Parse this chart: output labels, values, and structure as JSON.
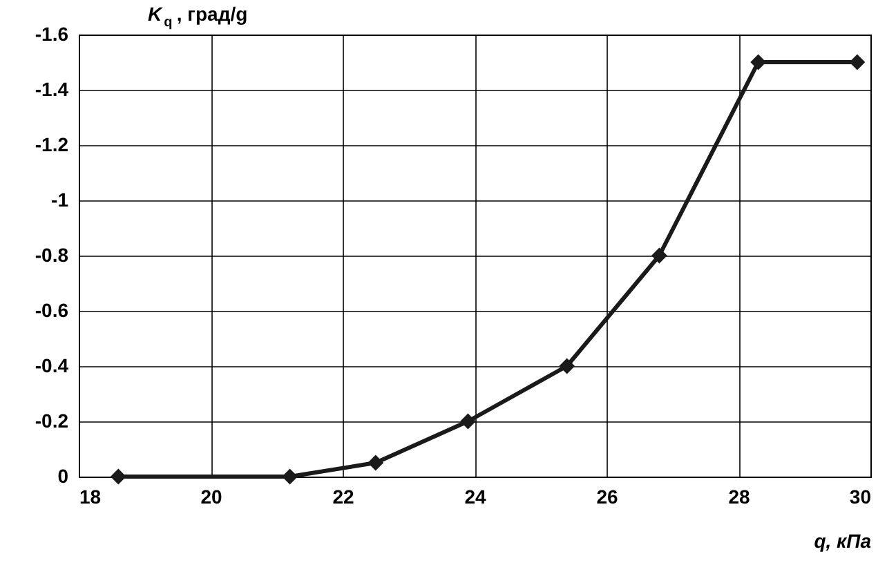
{
  "chart_data": {
    "type": "line",
    "xlabel": "q, кПа",
    "ylabel": "K$_{q}$, град/g",
    "x": [
      18.6,
      21.2,
      22.5,
      23.9,
      25.4,
      26.8,
      28.3,
      29.8
    ],
    "series": [
      {
        "color": "#1a1a1a",
        "values": [
          0,
          0,
          -0.05,
          -0.2,
          -0.4,
          -0.8,
          -1.5,
          -1.5
        ]
      }
    ],
    "xlim": [
      18,
      30
    ],
    "xticks": [
      18,
      20,
      22,
      24,
      26,
      28,
      30
    ],
    "ylim": [
      0,
      -1.6
    ],
    "yticks": [
      0,
      -0.2,
      -0.4,
      -0.6,
      -0.8,
      -1,
      -1.2,
      -1.4,
      -1.6
    ],
    "grid": true,
    "marker": "diamond",
    "line_style": "solid",
    "legend": false
  }
}
